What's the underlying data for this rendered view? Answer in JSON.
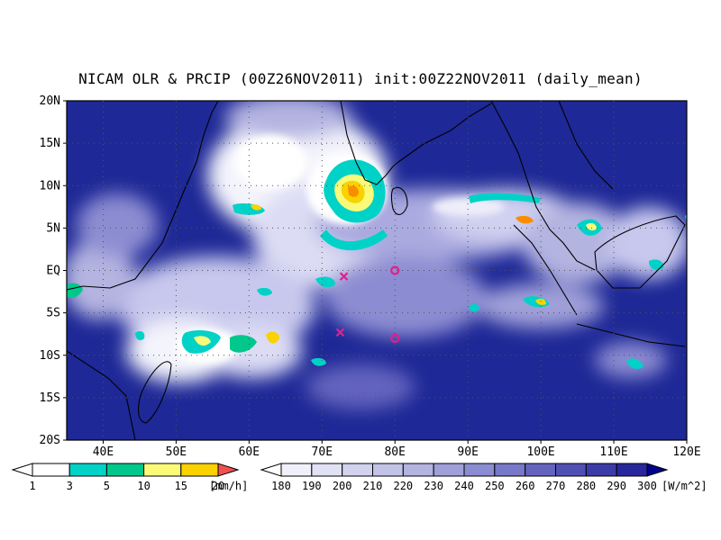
{
  "title": "NICAM OLR & PRCIP (00Z26NOV2011) init:00Z22NOV2011 (daily_mean)",
  "map": {
    "lon_range": [
      35,
      120
    ],
    "lat_range": [
      -20,
      20
    ],
    "lon_ticks": [
      {
        "value": 40,
        "label": "40E"
      },
      {
        "value": 50,
        "label": "50E"
      },
      {
        "value": 60,
        "label": "60E"
      },
      {
        "value": 70,
        "label": "70E"
      },
      {
        "value": 80,
        "label": "80E"
      },
      {
        "value": 90,
        "label": "90E"
      },
      {
        "value": 100,
        "label": "100E"
      },
      {
        "value": 110,
        "label": "110E"
      },
      {
        "value": 120,
        "label": "120E"
      }
    ],
    "lat_ticks": [
      {
        "value": 20,
        "label": "20N"
      },
      {
        "value": 15,
        "label": "15N"
      },
      {
        "value": 10,
        "label": "10N"
      },
      {
        "value": 5,
        "label": "5N"
      },
      {
        "value": 0,
        "label": "EQ"
      },
      {
        "value": -5,
        "label": "5S"
      },
      {
        "value": -10,
        "label": "10S"
      },
      {
        "value": -15,
        "label": "15S"
      },
      {
        "value": -20,
        "label": "20S"
      }
    ],
    "markers": [
      {
        "type": "x",
        "lon": 73.0,
        "lat": -0.7,
        "color": "#e0208c"
      },
      {
        "type": "x",
        "lon": 72.5,
        "lat": -7.3,
        "color": "#e0208c"
      },
      {
        "type": "o",
        "lon": 80.0,
        "lat": 0.0,
        "color": "#e0208c"
      },
      {
        "type": "o",
        "lon": 80.0,
        "lat": -8.0,
        "color": "#e0208c"
      }
    ]
  },
  "precip_colorbar": {
    "labels": [
      "1",
      "3",
      "5",
      "10",
      "15",
      "20"
    ],
    "unit": "[mm/h]",
    "colors": [
      "#00d2c8",
      "#00c88c",
      "#fafa78",
      "#fad200",
      "#fa8c00",
      "#f05050"
    ]
  },
  "olr_colorbar": {
    "labels": [
      "180",
      "190",
      "200",
      "210",
      "220",
      "230",
      "240",
      "250",
      "260",
      "270",
      "280",
      "290",
      "300"
    ],
    "unit": "[W/m^2]",
    "colors": [
      "#f0f0fa",
      "#e1e1f5",
      "#d2d2ee",
      "#c3c3e8",
      "#b4b4e1",
      "#a0a0d9",
      "#8c8cd2",
      "#7878c8",
      "#6464be",
      "#5050b4",
      "#3c3ca8",
      "#28289c",
      "#141490",
      "#00008c"
    ]
  }
}
